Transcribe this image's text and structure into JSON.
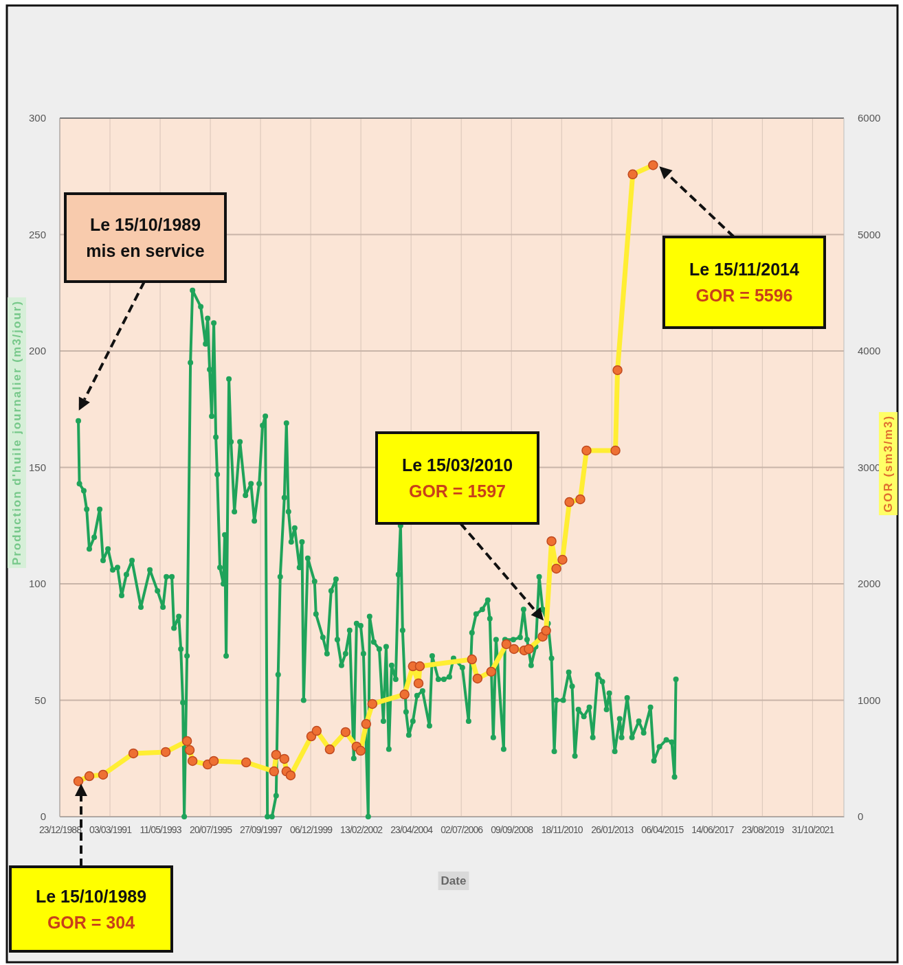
{
  "chart_data": {
    "type": "line",
    "xlabel": "Date",
    "ylabel": "Production d'huile journalier (m3/jour)",
    "y2label": "GOR (sm3/m3)",
    "xlim": [
      "1988-12-23",
      "2023-03-15"
    ],
    "xticks": [
      {
        "value": "1988-12-23",
        "label": "23/12/1988"
      },
      {
        "value": "1991-03-03",
        "label": "03/03/1991"
      },
      {
        "value": "1993-05-11",
        "label": "11/05/1993"
      },
      {
        "value": "1995-07-20",
        "label": "20/07/1995"
      },
      {
        "value": "1997-09-27",
        "label": "27/09/1997"
      },
      {
        "value": "1999-12-06",
        "label": "06/12/1999"
      },
      {
        "value": "2002-02-13",
        "label": "13/02/2002"
      },
      {
        "value": "2004-04-23",
        "label": "23/04/2004"
      },
      {
        "value": "2006-07-02",
        "label": "02/07/2006"
      },
      {
        "value": "2008-09-09",
        "label": "09/09/2008"
      },
      {
        "value": "2010-11-18",
        "label": "18/11/2010"
      },
      {
        "value": "2013-01-26",
        "label": "26/01/2013"
      },
      {
        "value": "2015-04-06",
        "label": "06/04/2015"
      },
      {
        "value": "2017-06-14",
        "label": "14/06/2017"
      },
      {
        "value": "2019-08-23",
        "label": "23/08/2019"
      },
      {
        "value": "2021-10-31",
        "label": "31/10/2021"
      }
    ],
    "ylim": [
      0,
      300
    ],
    "yticks": [
      0,
      50,
      100,
      150,
      200,
      250,
      300
    ],
    "y2lim": [
      0,
      6000
    ],
    "y2ticks": [
      0,
      1000,
      2000,
      3000,
      4000,
      5000,
      6000
    ],
    "grid": true,
    "marker": "circle",
    "series": [
      {
        "color": "#1fa35a",
        "x": [
          "1989-10-15",
          "1989-11-01",
          "1990-01-10",
          "1990-02-25",
          "1990-04-08",
          "1990-06-25",
          "1990-09-20",
          "1990-11-13",
          "1991-01-30",
          "1991-04-16",
          "1991-07-01",
          "1991-09-05",
          "1991-11-20",
          "1992-02-17",
          "1992-07-08",
          "1992-11-28",
          "1993-03-29",
          "1993-06-25",
          "1993-08-18",
          "1993-11-14",
          "1993-12-17",
          "1994-03-04",
          "1994-04-06",
          "1994-05-08",
          "1994-05-30",
          "1994-07-13",
          "1994-09-06",
          "1994-10-09",
          "1995-02-17",
          "1995-05-05",
          "1995-06-07",
          "1995-07-09",
          "1995-08-11",
          "1995-09-13",
          "1995-10-16",
          "1995-11-07",
          "1995-12-20",
          "1996-02-13",
          "1996-03-06",
          "1996-03-28",
          "1996-05-11",
          "1996-06-13",
          "1996-08-07",
          "1996-11-03",
          "1997-01-30",
          "1997-04-28",
          "1997-06-21",
          "1997-09-06",
          "1997-10-30",
          "1997-12-13",
          "1998-01-15",
          "1998-03-29",
          "1998-06-03",
          "1998-07-05",
          "1998-08-07",
          "1998-10-12",
          "1998-11-14",
          "1998-12-17",
          "1999-01-30",
          "1999-03-26",
          "1999-06-10",
          "1999-07-20",
          "1999-08-15",
          "1999-10-20",
          "2000-02-06",
          "2000-02-28",
          "2000-06-17",
          "2000-08-22",
          "2000-10-27",
          "2001-01-12",
          "2001-02-03",
          "2001-04-10",
          "2001-06-14",
          "2001-08-18",
          "2001-10-23",
          "2001-12-06",
          "2002-02-10",
          "2002-03-26",
          "2002-06-10",
          "2002-07-02",
          "2002-09-06",
          "2002-12-03",
          "2003-02-07",
          "2003-03-23",
          "2003-05-05",
          "2003-06-18",
          "2003-08-22",
          "2003-10-05",
          "2003-11-07",
          "2003-12-10",
          "2004-02-03",
          "2004-03-18",
          "2004-05-22",
          "2004-07-27",
          "2004-10-23",
          "2005-02-10",
          "2005-03-26",
          "2005-07-02",
          "2005-09-28",
          "2005-12-25",
          "2006-03-01",
          "2006-07-20",
          "2006-10-27",
          "2006-12-20",
          "2007-02-24",
          "2007-06-03",
          "2007-08-29",
          "2007-10-01",
          "2007-11-25",
          "2008-01-08",
          "2008-05-08",
          "2008-05-30",
          "2008-10-09",
          "2009-01-26",
          "2009-03-22",
          "2009-05-16",
          "2009-07-20",
          "2009-10-01",
          "2009-11-25",
          "2010-01-19",
          "2010-04-16",
          "2010-06-10",
          "2010-07-24",
          "2010-08-26",
          "2010-12-14",
          "2011-03-12",
          "2011-05-05",
          "2011-06-18",
          "2011-08-12",
          "2011-11-08",
          "2012-02-03",
          "2012-03-29",
          "2012-06-14",
          "2012-08-29",
          "2012-11-03",
          "2012-12-17",
          "2013-03-15",
          "2013-05-31",
          "2013-07-02",
          "2013-09-28",
          "2013-12-14",
          "2014-04-02",
          "2014-06-18",
          "2014-10-05",
          "2014-11-29",
          "2015-02-25",
          "2015-06-14",
          "2015-09-09",
          "2015-10-23",
          "2015-11-14"
        ],
        "values": [
          170,
          143,
          140,
          132,
          115,
          120,
          132,
          110,
          115,
          106,
          107,
          95,
          104,
          110,
          90,
          106,
          97,
          90,
          103,
          103,
          81,
          86,
          72,
          49,
          0,
          69,
          195,
          226,
          219,
          203,
          214,
          192,
          172,
          212,
          163,
          147,
          107,
          100,
          121,
          69,
          188,
          161,
          131,
          161,
          138,
          143,
          127,
          143,
          168,
          172,
          0,
          0,
          9,
          61,
          103,
          137,
          169,
          131,
          118,
          124,
          107,
          118,
          50,
          111,
          101,
          87,
          77,
          70,
          97,
          102,
          76,
          65,
          70,
          80,
          25,
          83,
          82,
          70,
          0,
          86,
          75,
          72,
          41,
          73,
          29,
          65,
          59,
          104,
          125,
          80,
          45,
          35,
          41,
          52,
          54,
          39,
          69,
          59,
          59,
          60,
          68,
          64,
          41,
          79,
          87,
          89,
          93,
          85,
          34,
          76,
          29,
          76,
          76,
          77,
          89,
          76,
          65,
          73,
          103,
          89,
          83,
          68,
          28,
          50,
          50,
          62,
          56,
          26,
          46,
          43,
          47,
          34,
          61,
          58,
          46,
          53,
          28,
          42,
          34,
          51,
          34,
          41,
          36,
          47,
          24,
          30,
          33,
          32,
          17,
          59
        ]
      },
      {
        "color": "#ffee33",
        "colors": [
          "#ee7033",
          "#ee7033",
          "#ee7033",
          "#ee7033",
          "#ee7033",
          "#ee7033",
          "#ee7033",
          "#ee7033",
          "#ee7033",
          "#ee7033",
          "#ee7033",
          "#ee7033",
          "#ee7033",
          "#ee7033",
          "#ee7033",
          "#ee7033",
          "#ee7033",
          "#ee7033",
          "#ee7033",
          "#ee7033",
          "#ee7033",
          "#ee7033",
          "#ee7033",
          "#ee7033",
          "#ee7033",
          "#ee7033",
          "#ee7033",
          "#ee7033",
          "#ee7033",
          "#ee7033",
          "#ee7033",
          "#ee7033",
          "#ee7033",
          "#ee7033",
          "#ee7033",
          "#ee7033",
          "#ee7033",
          "#ee7033",
          "#ee7033",
          "#ee7033",
          "#ee7033",
          "#ee7033",
          "#ee7033",
          "#ee7033",
          "#ee7033",
          "#ee7033",
          "#ee7033"
        ],
        "axis": "y2",
        "x": [
          "1989-10-15",
          "1990-04-08",
          "1990-11-13",
          "1992-03-10",
          "1993-08-07",
          "1994-07-13",
          "1994-08-25",
          "1994-10-09",
          "1995-06-07",
          "1995-09-13",
          "1997-02-10",
          "1998-05-01",
          "1998-06-03",
          "1998-10-12",
          "1998-11-14",
          "1999-01-20",
          "1999-12-15",
          "2000-03-10",
          "2000-10-05",
          "2001-06-14",
          "2001-12-06",
          "2002-02-10",
          "2002-05-08",
          "2002-08-15",
          "2004-01-10",
          "2004-05-22",
          "2004-08-20",
          "2004-09-10",
          "2006-12-20",
          "2007-03-18",
          "2007-10-22",
          "2008-06-20",
          "2008-10-20",
          "2009-04-01",
          "2009-06-13",
          "2010-01-19",
          "2010-03-15",
          "2010-06-10",
          "2010-08-26",
          "2010-12-01",
          "2011-03-22",
          "2011-09-12",
          "2011-12-20",
          "2013-03-25",
          "2013-04-27",
          "2013-12-25",
          "2014-11-15"
        ],
        "values": [
          304,
          348,
          360,
          543,
          555,
          649,
          572,
          478,
          448,
          478,
          466,
          389,
          531,
          496,
          389,
          354,
          690,
          737,
          578,
          726,
          602,
          566,
          796,
          968,
          1050,
          1292,
          1145,
          1292,
          1351,
          1186,
          1245,
          1481,
          1440,
          1428,
          1440,
          1546,
          1597,
          2366,
          2130,
          2207,
          2702,
          2726,
          3145,
          3145,
          3835,
          5517,
          5596
        ]
      }
    ],
    "annotations": [
      "Le 15/10/1989\nmis en service",
      "Le 15/03/2010\nGOR = 1597",
      "Le 15/11/2014\nGOR = 5596",
      "Le 15/10/1989\nGOR = 304"
    ]
  }
}
